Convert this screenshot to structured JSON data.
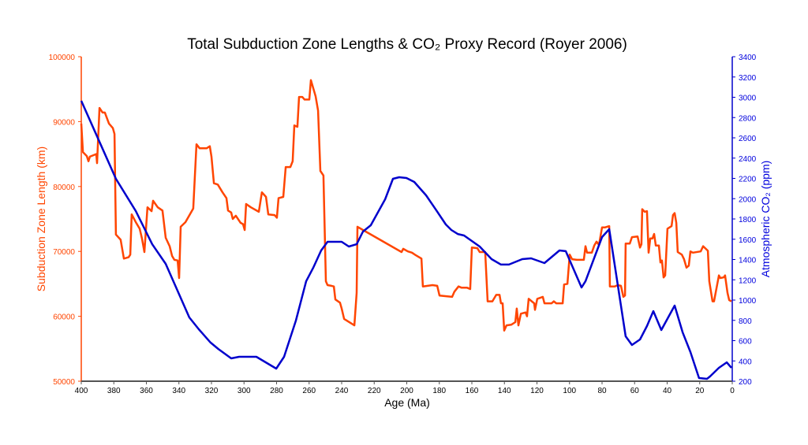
{
  "chart_data": {
    "type": "line",
    "title": "Total Subduction Zone Lengths & CO₂ Proxy Record (Royer 2006)",
    "xlabel": "Age (Ma)",
    "ylabel_left": "Subduction Zone Length (km)",
    "ylabel_right": "Atmospheric CO₂ (ppm)",
    "xlim": [
      400,
      0
    ],
    "x_reversed": true,
    "ylim_left": [
      50000,
      100000
    ],
    "ylim_right": [
      200,
      3400
    ],
    "x_ticks": [
      400,
      380,
      360,
      340,
      320,
      300,
      280,
      260,
      240,
      220,
      200,
      180,
      160,
      140,
      120,
      100,
      80,
      60,
      40,
      20,
      0
    ],
    "y_ticks_left": [
      50000,
      60000,
      70000,
      80000,
      90000,
      100000
    ],
    "y_ticks_right": [
      200,
      400,
      600,
      800,
      1000,
      1200,
      1400,
      1600,
      1800,
      2000,
      2200,
      2400,
      2600,
      2800,
      3000,
      3200,
      3400
    ],
    "grid": false,
    "colors": {
      "left": "#ff4500",
      "right": "#0000cc"
    },
    "series": [
      {
        "axis": "left",
        "color": "#ff4500",
        "points": [
          [
            400,
            89700
          ],
          [
            399,
            85300
          ],
          [
            396.6,
            84700
          ],
          [
            395.6,
            83900
          ],
          [
            394.7,
            84600
          ],
          [
            390.8,
            85000
          ],
          [
            390.3,
            83600
          ],
          [
            388.8,
            92100
          ],
          [
            386.9,
            91400
          ],
          [
            385.5,
            91400
          ],
          [
            383,
            89700
          ],
          [
            380.6,
            89000
          ],
          [
            379.6,
            88100
          ],
          [
            378.7,
            72600
          ],
          [
            375.8,
            71800
          ],
          [
            373.8,
            68900
          ],
          [
            370.9,
            69100
          ],
          [
            369.9,
            69500
          ],
          [
            369,
            75700
          ],
          [
            366.5,
            74500
          ],
          [
            364.1,
            73500
          ],
          [
            362.7,
            72000
          ],
          [
            361.2,
            69900
          ],
          [
            359.3,
            76800
          ],
          [
            356.8,
            76200
          ],
          [
            355.9,
            77800
          ],
          [
            353,
            76800
          ],
          [
            350.1,
            76300
          ],
          [
            348.1,
            72100
          ],
          [
            345.7,
            70800
          ],
          [
            344.2,
            69300
          ],
          [
            342.8,
            68700
          ],
          [
            340.8,
            68600
          ],
          [
            339.9,
            65900
          ],
          [
            338.9,
            73800
          ],
          [
            336,
            74500
          ],
          [
            331.2,
            76600
          ],
          [
            329.2,
            86500
          ],
          [
            327.3,
            85900
          ],
          [
            322.9,
            85900
          ],
          [
            321,
            86200
          ],
          [
            320,
            84600
          ],
          [
            318.5,
            80500
          ],
          [
            316.1,
            80300
          ],
          [
            313.2,
            79100
          ],
          [
            310.8,
            78200
          ],
          [
            309.8,
            76300
          ],
          [
            307.9,
            76000
          ],
          [
            306.9,
            75000
          ],
          [
            305,
            75500
          ],
          [
            302.1,
            74400
          ],
          [
            300.6,
            74200
          ],
          [
            299.6,
            73300
          ],
          [
            298.7,
            77300
          ],
          [
            295.8,
            76800
          ],
          [
            290.9,
            76100
          ],
          [
            289,
            79100
          ],
          [
            286.5,
            78400
          ],
          [
            285.1,
            75700
          ],
          [
            281.2,
            75600
          ],
          [
            279.8,
            75200
          ],
          [
            278.8,
            78200
          ],
          [
            275.9,
            78400
          ],
          [
            274.4,
            83000
          ],
          [
            271.5,
            83000
          ],
          [
            270.1,
            83900
          ],
          [
            269.1,
            89400
          ],
          [
            267.2,
            89200
          ],
          [
            266.2,
            93800
          ],
          [
            264.2,
            93800
          ],
          [
            262.8,
            93400
          ],
          [
            259.9,
            93400
          ],
          [
            258.9,
            96400
          ],
          [
            256,
            93900
          ],
          [
            254.5,
            91700
          ],
          [
            253.1,
            82400
          ],
          [
            251.2,
            81700
          ],
          [
            249.7,
            65400
          ],
          [
            248.7,
            64800
          ],
          [
            246.3,
            64700
          ],
          [
            244.8,
            64600
          ],
          [
            243.9,
            62600
          ],
          [
            241,
            62100
          ],
          [
            240,
            61200
          ],
          [
            238.5,
            59600
          ],
          [
            232.2,
            58600
          ],
          [
            230.8,
            63600
          ],
          [
            230.3,
            73800
          ],
          [
            226.9,
            73300
          ],
          [
            203.2,
            69900
          ],
          [
            202.2,
            70400
          ],
          [
            199.3,
            70000
          ],
          [
            196.8,
            69800
          ],
          [
            194.4,
            69400
          ],
          [
            191,
            68900
          ],
          [
            190.1,
            64600
          ],
          [
            184.2,
            64800
          ],
          [
            181.3,
            64700
          ],
          [
            179.9,
            63200
          ],
          [
            172.1,
            63000
          ],
          [
            170.7,
            63800
          ],
          [
            168.2,
            64600
          ],
          [
            166.3,
            64400
          ],
          [
            162.9,
            64400
          ],
          [
            161,
            64200
          ],
          [
            160,
            70600
          ],
          [
            156.6,
            70500
          ],
          [
            155.2,
            69900
          ],
          [
            151.8,
            69900
          ],
          [
            150.3,
            62300
          ],
          [
            147.4,
            62300
          ],
          [
            145,
            63300
          ],
          [
            143,
            63300
          ],
          [
            142.1,
            62000
          ],
          [
            141.1,
            62000
          ],
          [
            140.1,
            57800
          ],
          [
            138.7,
            58600
          ],
          [
            135.8,
            58700
          ],
          [
            133.3,
            59100
          ],
          [
            132.4,
            61200
          ],
          [
            131.4,
            58600
          ],
          [
            129.9,
            60400
          ],
          [
            127,
            60600
          ],
          [
            126.1,
            60000
          ],
          [
            125.1,
            62700
          ],
          [
            121.7,
            62000
          ],
          [
            121.2,
            61000
          ],
          [
            119.8,
            62700
          ],
          [
            116.4,
            63000
          ],
          [
            115.4,
            62000
          ],
          [
            111,
            62000
          ],
          [
            109.6,
            62300
          ],
          [
            108.1,
            62000
          ],
          [
            104.2,
            62000
          ],
          [
            103.3,
            64900
          ],
          [
            101.3,
            65000
          ],
          [
            99.9,
            69500
          ],
          [
            98.4,
            68800
          ],
          [
            95.5,
            68700
          ],
          [
            91.2,
            68700
          ],
          [
            90.2,
            70800
          ],
          [
            89.2,
            69800
          ],
          [
            86.3,
            69800
          ],
          [
            84.8,
            70900
          ],
          [
            83.4,
            71500
          ],
          [
            81.9,
            71000
          ],
          [
            80,
            73700
          ],
          [
            78.1,
            73700
          ],
          [
            75.6,
            73900
          ],
          [
            75.2,
            64600
          ],
          [
            72.2,
            64600
          ],
          [
            70.3,
            64800
          ],
          [
            68.4,
            64700
          ],
          [
            66.9,
            63000
          ],
          [
            65.9,
            63200
          ],
          [
            65.5,
            71200
          ],
          [
            63,
            71200
          ],
          [
            61.6,
            72200
          ],
          [
            58.2,
            72300
          ],
          [
            56.7,
            70600
          ],
          [
            55.8,
            71100
          ],
          [
            55.3,
            76500
          ],
          [
            53.8,
            76100
          ],
          [
            52.4,
            76200
          ],
          [
            51.4,
            69800
          ],
          [
            50.4,
            72000
          ],
          [
            49,
            72000
          ],
          [
            48,
            72700
          ],
          [
            47,
            70900
          ],
          [
            45.1,
            70900
          ],
          [
            44.1,
            68300
          ],
          [
            43.2,
            68600
          ],
          [
            42.2,
            66000
          ],
          [
            41.2,
            66300
          ],
          [
            39.8,
            73500
          ],
          [
            37.3,
            73900
          ],
          [
            36.4,
            75600
          ],
          [
            35.4,
            75900
          ],
          [
            34.4,
            74400
          ],
          [
            33.5,
            69900
          ],
          [
            31,
            69500
          ],
          [
            29.6,
            68800
          ],
          [
            28.1,
            67500
          ],
          [
            26.7,
            67800
          ],
          [
            25.7,
            70000
          ],
          [
            24.2,
            69800
          ],
          [
            19.4,
            70000
          ],
          [
            17.9,
            70800
          ],
          [
            15,
            70100
          ],
          [
            14.1,
            65400
          ],
          [
            12.1,
            62300
          ],
          [
            11.2,
            62300
          ],
          [
            8.2,
            66300
          ],
          [
            7.3,
            65900
          ],
          [
            5.3,
            66000
          ],
          [
            4.4,
            66300
          ],
          [
            2.9,
            63600
          ],
          [
            1.9,
            62500
          ],
          [
            0.5,
            62300
          ]
        ]
      },
      {
        "axis": "right",
        "color": "#0000cc",
        "points": [
          [
            400,
            2965
          ],
          [
            378.7,
            2196
          ],
          [
            366.5,
            1878
          ],
          [
            356.4,
            1551
          ],
          [
            348.1,
            1357
          ],
          [
            333.6,
            829
          ],
          [
            327.8,
            713
          ],
          [
            320.6,
            581
          ],
          [
            315.8,
            518
          ],
          [
            307.9,
            425
          ],
          [
            303,
            441
          ],
          [
            292.4,
            441
          ],
          [
            280.2,
            324
          ],
          [
            275.4,
            441
          ],
          [
            268.1,
            798
          ],
          [
            261.8,
            1186
          ],
          [
            257.5,
            1318
          ],
          [
            252.6,
            1489
          ],
          [
            248.7,
            1575
          ],
          [
            240,
            1575
          ],
          [
            235.6,
            1528
          ],
          [
            230.8,
            1551
          ],
          [
            226.9,
            1676
          ],
          [
            222.1,
            1738
          ],
          [
            213.3,
            1994
          ],
          [
            208.5,
            2196
          ],
          [
            204.6,
            2212
          ],
          [
            200.2,
            2204
          ],
          [
            195.4,
            2165
          ],
          [
            188.1,
            2033
          ],
          [
            181.8,
            1885
          ],
          [
            176,
            1746
          ],
          [
            172.6,
            1691
          ],
          [
            168.7,
            1652
          ],
          [
            164.8,
            1637
          ],
          [
            155.2,
            1528
          ],
          [
            147.9,
            1404
          ],
          [
            142.1,
            1350
          ],
          [
            137.2,
            1350
          ],
          [
            129,
            1404
          ],
          [
            123.6,
            1412
          ],
          [
            115.4,
            1365
          ],
          [
            106.2,
            1489
          ],
          [
            102.3,
            1482
          ],
          [
            92.6,
            1124
          ],
          [
            90.2,
            1186
          ],
          [
            80,
            1621
          ],
          [
            75.6,
            1699
          ],
          [
            65.5,
            643
          ],
          [
            61.6,
            557
          ],
          [
            56.7,
            612
          ],
          [
            52.4,
            744
          ],
          [
            48.5,
            891
          ],
          [
            43.6,
            705
          ],
          [
            35.4,
            946
          ],
          [
            30.5,
            682
          ],
          [
            25.7,
            487
          ],
          [
            20.4,
            231
          ],
          [
            15.5,
            223
          ],
          [
            13.6,
            247
          ],
          [
            8.2,
            332
          ],
          [
            3.4,
            386
          ],
          [
            0.5,
            332
          ]
        ]
      }
    ]
  }
}
